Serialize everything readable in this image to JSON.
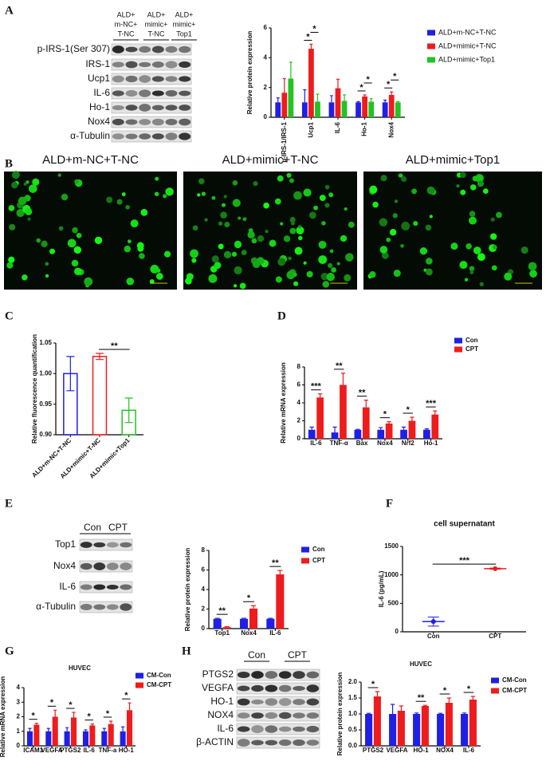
{
  "panels": [
    "A",
    "B",
    "C",
    "D",
    "E",
    "F",
    "G",
    "H"
  ],
  "blots": [
    {
      "lanes": [
        [
          "ALD+",
          "m-NC+",
          "T-NC"
        ],
        [
          "ALD+",
          "mimic+",
          "T-NC"
        ],
        [
          "ALD+",
          "mimic+",
          "Top1"
        ]
      ],
      "rows": [
        "p-IRS-1(Ser 307)",
        "IRS-1",
        "Ucp1",
        "IL-6",
        "Ho-1",
        "Nox4",
        "α-Tubulin"
      ]
    },
    {
      "lanes": [
        [
          "Con"
        ],
        [
          "CPT"
        ]
      ],
      "rows": [
        "Top1",
        "Nox4",
        "IL-6",
        "α-Tubulin"
      ]
    },
    {
      "lanes": [
        [
          "Con"
        ],
        [
          "CPT"
        ]
      ],
      "rows": [
        "PTGS2",
        "VEGFA",
        "HO-1",
        "NOX4",
        "IL-6",
        "β-ACTIN"
      ]
    }
  ],
  "micrographs": [
    "ALD+m-NC+T-NC",
    "ALD+mimic+T-NC",
    "ALD+mimic+Top1"
  ],
  "chart_data": [
    {
      "type": "bar",
      "ylabel": "Relative protein expression",
      "categories": [
        "p-IRS-1/IRS-1",
        "Ucp1",
        "IL-6",
        "Ho-1",
        "Nox4"
      ],
      "series": [
        {
          "name": "ALD+m-NC+T-NC",
          "color": "#1f1fe6",
          "values": [
            1,
            1,
            1,
            1,
            1
          ],
          "errors": [
            0.3,
            0.85,
            0.45,
            0.05,
            0.15
          ]
        },
        {
          "name": "ALD+mimic+T-NC",
          "color": "#ee1c1c",
          "values": [
            1.65,
            4.6,
            1.95,
            1.4,
            1.5
          ],
          "errors": [
            0.95,
            0.3,
            0.6,
            0.1,
            0.2
          ]
        },
        {
          "name": "ALD+mimic+Top1",
          "color": "#22c322",
          "values": [
            2.6,
            1.05,
            1.1,
            1.05,
            1.0
          ],
          "errors": [
            1.1,
            0.5,
            0.4,
            0.2,
            0.05
          ]
        }
      ],
      "ylim": [
        0,
        6
      ],
      "yticks": [
        0,
        2,
        4,
        6
      ],
      "significance": [
        {
          "label": "*",
          "category": "Ucp1",
          "series": [
            "ALD+m-NC+T-NC",
            "ALD+mimic+T-NC"
          ]
        },
        {
          "label": "*",
          "category": "Ucp1",
          "series": [
            "ALD+mimic+T-NC",
            "ALD+mimic+Top1"
          ]
        },
        {
          "label": "*",
          "category": "Ho-1",
          "series": [
            "ALD+m-NC+T-NC",
            "ALD+mimic+T-NC"
          ]
        },
        {
          "label": "*",
          "category": "Ho-1",
          "series": [
            "ALD+mimic+T-NC",
            "ALD+mimic+Top1"
          ]
        },
        {
          "label": "*",
          "category": "Nox4",
          "series": [
            "ALD+m-NC+T-NC",
            "ALD+mimic+T-NC"
          ]
        },
        {
          "label": "*",
          "category": "Nox4",
          "series": [
            "ALD+mimic+T-NC",
            "ALD+mimic+Top1"
          ]
        }
      ]
    },
    {
      "type": "bar",
      "ylabel": "Relative fluorescence quantification",
      "categories": [
        "ALD+m-NC+T-NC",
        "ALD+mimic+T-NC",
        "ALD+mimic+Top1"
      ],
      "values": [
        1.0,
        1.028,
        0.94
      ],
      "errors": [
        0.028,
        0.005,
        0.02
      ],
      "colors": [
        "#1f1fe6",
        "#ee1c1c",
        "#22c322"
      ],
      "ylim": [
        0.9,
        1.05
      ],
      "yticks": [
        {
          "value": 0.9,
          "label": "0.90"
        },
        {
          "value": 0.95,
          "label": "0.95"
        },
        {
          "value": 1.0,
          "label": "1.00"
        },
        {
          "value": 1.05,
          "label": "1.05"
        }
      ],
      "significance": [
        {
          "label": "**",
          "categories": [
            "ALD+mimic+T-NC",
            "ALD+mimic+Top1"
          ]
        }
      ]
    },
    {
      "type": "bar",
      "ylabel": "Relative mRNA expression",
      "categories": [
        "IL-6",
        "TNF-α",
        "Bax",
        "Nox4",
        "Nrf2",
        "Ho-1"
      ],
      "series": [
        {
          "name": "Con",
          "color": "#1f1fe6",
          "values": [
            1,
            0.7,
            1,
            1,
            1,
            1
          ],
          "errors": [
            0.3,
            0.6,
            0.05,
            0.25,
            0.3,
            0.1
          ]
        },
        {
          "name": "CPT",
          "color": "#ee1c1c",
          "values": [
            4.6,
            6,
            3.5,
            1.7,
            2,
            2.7
          ],
          "errors": [
            0.4,
            1.3,
            0.8,
            0.2,
            0.4,
            0.4
          ]
        }
      ],
      "ylim": [
        0,
        8
      ],
      "yticks": [
        0,
        2,
        4,
        6,
        8
      ],
      "significance": [
        {
          "label": "***",
          "category": "IL-6"
        },
        {
          "label": "**",
          "category": "TNF-α"
        },
        {
          "label": "**",
          "category": "Bax"
        },
        {
          "label": "*",
          "category": "Nox4"
        },
        {
          "label": "*",
          "category": "Nrf2"
        },
        {
          "label": "***",
          "category": "Ho-1"
        }
      ]
    },
    {
      "type": "bar",
      "ylabel": "Relative protein expression",
      "categories": [
        "Top1",
        "Nox4",
        "IL-6"
      ],
      "series": [
        {
          "name": "Con",
          "color": "#1f1fe6",
          "values": [
            1,
            1,
            1
          ],
          "errors": [
            0.05,
            0.05,
            0.05
          ]
        },
        {
          "name": "CPT",
          "color": "#ee1c1c",
          "values": [
            0.15,
            2.05,
            5.55
          ],
          "errors": [
            0.05,
            0.3,
            0.4
          ]
        }
      ],
      "ylim": [
        0,
        8
      ],
      "yticks": [
        0,
        2,
        4,
        6,
        8
      ],
      "significance": [
        {
          "label": "**",
          "category": "Top1"
        },
        {
          "label": "*",
          "category": "Nox4"
        },
        {
          "label": "**",
          "category": "IL-6"
        }
      ]
    },
    {
      "type": "scatter",
      "title": "cell supernatant",
      "ylabel": "IL-6 (pg/mL)",
      "categories": [
        "Con",
        "CPT"
      ],
      "values": [
        180,
        1110
      ],
      "errors": [
        80,
        10
      ],
      "colors": [
        "#1f1fe6",
        "#ee1c1c"
      ],
      "ylim": [
        0,
        1500
      ],
      "yticks": [
        0,
        500,
        1000,
        1500
      ],
      "significance": [
        {
          "label": "***",
          "categories": [
            "Con",
            "CPT"
          ]
        }
      ]
    },
    {
      "type": "bar",
      "title": "HUVEC",
      "ylabel": "Relative mRNA expression",
      "categories": [
        "ICAM1",
        "VEGFA",
        "PTGS2",
        "IL-6",
        "TNF-a",
        "HO-1"
      ],
      "series": [
        {
          "name": "CM-Con",
          "color": "#1f1fe6",
          "values": [
            1,
            1,
            1,
            1,
            1,
            1
          ],
          "errors": [
            0.2,
            0.2,
            0.25,
            0.1,
            0.2,
            0.3
          ]
        },
        {
          "name": "CM-CPT",
          "color": "#ee1c1c",
          "values": [
            1.45,
            2,
            1.95,
            1.4,
            1.5,
            2.45
          ],
          "errors": [
            0.1,
            0.45,
            0.35,
            0.1,
            0.2,
            0.5
          ]
        }
      ],
      "ylim": [
        0,
        4
      ],
      "yticks": [
        0,
        1,
        2,
        3,
        4
      ],
      "significance": [
        {
          "label": "*",
          "category": "ICAM1"
        },
        {
          "label": "*",
          "category": "VEGFA"
        },
        {
          "label": "*",
          "category": "PTGS2"
        },
        {
          "label": "*",
          "category": "IL-6"
        },
        {
          "label": "*",
          "category": "TNF-a"
        },
        {
          "label": "*",
          "category": "HO-1"
        }
      ]
    },
    {
      "type": "bar",
      "title": "HUVEC",
      "ylabel": "Relative protein expression",
      "categories": [
        "PTGS2",
        "VEGFA",
        "HO-1",
        "NOX4",
        "IL-6"
      ],
      "series": [
        {
          "name": "CM-Con",
          "color": "#1f1fe6",
          "values": [
            1,
            1,
            1,
            1,
            1
          ],
          "errors": [
            0.02,
            0.3,
            0.03,
            0.02,
            0.03
          ]
        },
        {
          "name": "CM-CPT",
          "color": "#ee1c1c",
          "values": [
            1.55,
            1.1,
            1.25,
            1.35,
            1.45
          ],
          "errors": [
            0.15,
            0.15,
            0.02,
            0.15,
            0.1
          ]
        }
      ],
      "ylim": [
        0,
        2
      ],
      "yticks": [
        {
          "value": 0,
          "label": "0.0"
        },
        {
          "value": 0.5,
          "label": "0.5"
        },
        {
          "value": 1,
          "label": "1.0"
        },
        {
          "value": 1.5,
          "label": "1.5"
        },
        {
          "value": 2,
          "label": "2.0"
        }
      ],
      "significance": [
        {
          "label": "*",
          "category": "PTGS2"
        },
        {
          "label": "**",
          "category": "HO-1"
        },
        {
          "label": "*",
          "category": "NOX4"
        },
        {
          "label": "*",
          "category": "IL-6"
        }
      ]
    }
  ]
}
